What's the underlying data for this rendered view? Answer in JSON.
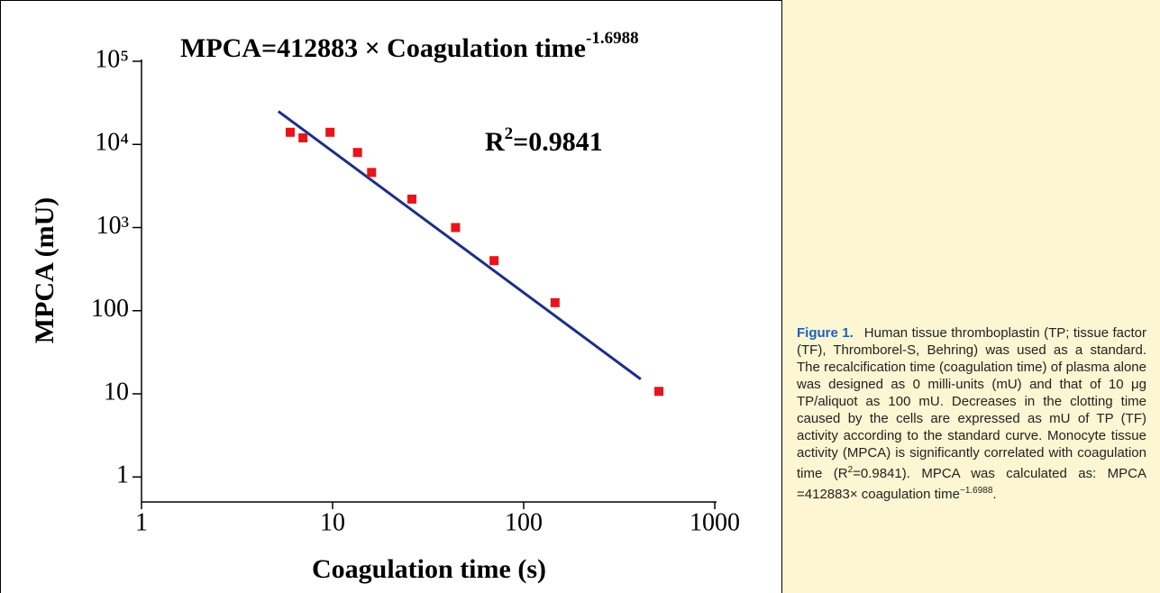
{
  "chart_data": {
    "type": "scatter",
    "title": "MPCA=412883 × Coagulation time",
    "title_exponent": "-1.6988",
    "annotation": {
      "text": "R",
      "sup": "2",
      "rest": "=0.9841"
    },
    "x_label": "Coagulation time (s)",
    "y_label": "MPCA (mU)",
    "x_log": true,
    "y_log": true,
    "xlim": [
      1,
      1000
    ],
    "xticks": [
      1,
      10,
      100,
      1000
    ],
    "ylim": [
      0.5,
      100000
    ],
    "yticks": [
      1,
      10,
      100,
      {
        "value": 1000,
        "label": "10³"
      },
      {
        "value": 10000,
        "label": "10⁴"
      },
      {
        "value": 100000,
        "label": "10⁵"
      }
    ],
    "series": [
      {
        "color": "#e8141c",
        "x": [
          6,
          7,
          9.7,
          13.5,
          16,
          26,
          44,
          70,
          146,
          510
        ],
        "values": [
          14000,
          12000,
          14000,
          8000,
          4600,
          2200,
          1000,
          400,
          125,
          10.7
        ]
      }
    ],
    "fit": {
      "color": "#1f2f86",
      "x": [
        5.2,
        410
      ],
      "values": [
        25000,
        15
      ]
    }
  },
  "caption": {
    "label": "Figure 1.",
    "parts": [
      {
        "text": "Human tissue thromboplastin (TP; tissue factor (TF), Thromborel-S, Behring) was used as a standard. The recalcification time (coagulation time) of plasma alone was designed as 0 milli-units (mU) and that of 10 μg TP/aliquot as 100 mU. Decreases in the clotting time caused by the cells are expressed as mU of TP (TF) activity according to the standard curve. Monocyte tissue activity (MPCA) is significantly correlated with coagulation time (R"
      },
      {
        "sup": "2"
      },
      {
        "text": "=0.9841). MPCA was calculated as: MPCA =412883× coagulation time"
      },
      {
        "sup": "−1.6988"
      },
      {
        "text": "."
      }
    ]
  }
}
